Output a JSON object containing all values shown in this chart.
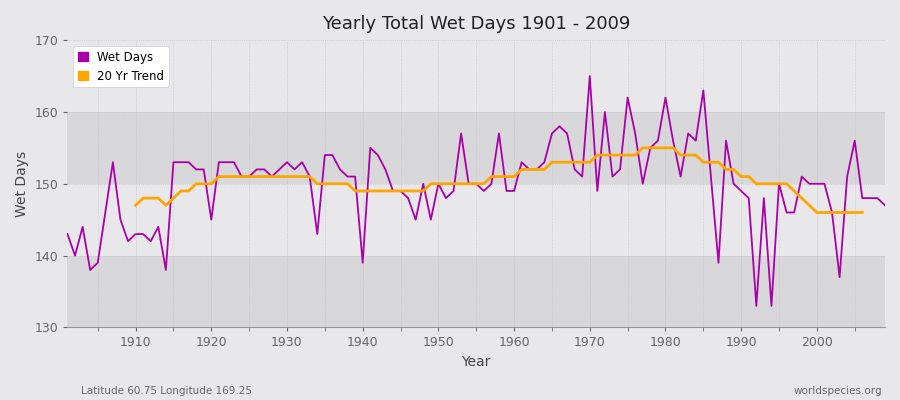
{
  "title": "Yearly Total Wet Days 1901 - 2009",
  "xlabel": "Year",
  "ylabel": "Wet Days",
  "subtitle": "Latitude 60.75 Longitude 169.25",
  "watermark": "worldspecies.org",
  "ylim": [
    130,
    170
  ],
  "yticks": [
    130,
    140,
    150,
    160,
    170
  ],
  "xlim": [
    1901,
    2009
  ],
  "wet_days_color": "#aa00aa",
  "trend_color": "#ffa500",
  "bg_color": "#e8e8ea",
  "plot_bg": "#e8e8ea",
  "band_colors": [
    "#dcdcde",
    "#e8e8ea"
  ],
  "years": [
    1901,
    1902,
    1903,
    1904,
    1905,
    1906,
    1907,
    1908,
    1909,
    1910,
    1911,
    1912,
    1913,
    1914,
    1915,
    1916,
    1917,
    1918,
    1919,
    1920,
    1921,
    1922,
    1923,
    1924,
    1925,
    1926,
    1927,
    1928,
    1929,
    1930,
    1931,
    1932,
    1933,
    1934,
    1935,
    1936,
    1937,
    1938,
    1939,
    1940,
    1941,
    1942,
    1943,
    1944,
    1945,
    1946,
    1947,
    1948,
    1949,
    1950,
    1951,
    1952,
    1953,
    1954,
    1955,
    1956,
    1957,
    1958,
    1959,
    1960,
    1961,
    1962,
    1963,
    1964,
    1965,
    1966,
    1967,
    1968,
    1969,
    1970,
    1971,
    1972,
    1973,
    1974,
    1975,
    1976,
    1977,
    1978,
    1979,
    1980,
    1981,
    1982,
    1983,
    1984,
    1985,
    1986,
    1987,
    1988,
    1989,
    1990,
    1991,
    1992,
    1993,
    1994,
    1995,
    1996,
    1997,
    1998,
    1999,
    2000,
    2001,
    2002,
    2003,
    2004,
    2005,
    2006,
    2007,
    2008,
    2009
  ],
  "wet_days": [
    143,
    140,
    144,
    138,
    139,
    146,
    153,
    145,
    142,
    143,
    143,
    142,
    144,
    138,
    153,
    153,
    153,
    152,
    152,
    145,
    153,
    153,
    153,
    151,
    151,
    152,
    152,
    151,
    152,
    153,
    152,
    153,
    151,
    143,
    154,
    154,
    152,
    151,
    151,
    139,
    155,
    154,
    152,
    149,
    149,
    148,
    145,
    150,
    145,
    150,
    148,
    149,
    157,
    150,
    150,
    149,
    150,
    157,
    149,
    149,
    153,
    152,
    152,
    153,
    157,
    158,
    157,
    152,
    151,
    165,
    149,
    160,
    151,
    152,
    162,
    157,
    150,
    155,
    156,
    162,
    156,
    151,
    157,
    156,
    163,
    151,
    139,
    156,
    150,
    149,
    148,
    133,
    148,
    133,
    150,
    146,
    146,
    151,
    150,
    150,
    150,
    146,
    137,
    151,
    156,
    148,
    148,
    148,
    147
  ],
  "trend": [
    null,
    null,
    null,
    null,
    null,
    null,
    null,
    null,
    null,
    147,
    148,
    148,
    148,
    147,
    148,
    149,
    149,
    150,
    150,
    150,
    151,
    151,
    151,
    151,
    151,
    151,
    151,
    151,
    151,
    151,
    151,
    151,
    151,
    150,
    150,
    150,
    150,
    150,
    149,
    149,
    149,
    149,
    149,
    149,
    149,
    149,
    149,
    149,
    150,
    150,
    150,
    150,
    150,
    150,
    150,
    150,
    151,
    151,
    151,
    151,
    152,
    152,
    152,
    152,
    153,
    153,
    153,
    153,
    153,
    153,
    154,
    154,
    154,
    154,
    154,
    154,
    155,
    155,
    155,
    155,
    155,
    154,
    154,
    154,
    153,
    153,
    153,
    152,
    152,
    151,
    151,
    150,
    150,
    150,
    150,
    150,
    149,
    148,
    147,
    146,
    146,
    146,
    146,
    146,
    146,
    146,
    null,
    null,
    null
  ]
}
